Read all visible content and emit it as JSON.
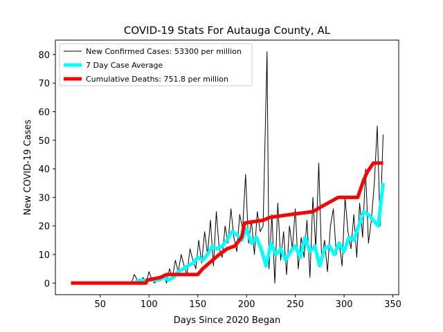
{
  "chart_data": {
    "type": "line",
    "title": "COVID-19 Stats For Autauga County, AL",
    "x_label": "Days Since 2020 Began",
    "y_label": "New COVID-19 Cases",
    "xlim": [
      4,
      356
    ],
    "ylim": [
      -4.05,
      85.05
    ],
    "xticks": [
      50,
      100,
      150,
      200,
      250,
      300,
      350
    ],
    "yticks": [
      0,
      10,
      20,
      30,
      40,
      50,
      60,
      70,
      80
    ],
    "legend": "upper left",
    "series": [
      {
        "name": "New Confirmed Cases: 53300 per million",
        "color": "#000000",
        "width": 1,
        "x": [
          82,
          85,
          88,
          91,
          94,
          97,
          100,
          103,
          106,
          109,
          112,
          115,
          118,
          121,
          124,
          127,
          130,
          133,
          136,
          139,
          142,
          145,
          148,
          151,
          154,
          157,
          160,
          163,
          166,
          169,
          172,
          175,
          178,
          181,
          184,
          187,
          190,
          193,
          196,
          199,
          202,
          205,
          208,
          211,
          214,
          217,
          221,
          223,
          226,
          229,
          232,
          235,
          238,
          241,
          244,
          247,
          250,
          253,
          256,
          259,
          262,
          265,
          268,
          271,
          274,
          277,
          280,
          283,
          286,
          289,
          292,
          295,
          298,
          301,
          304,
          307,
          310,
          313,
          316,
          319,
          322,
          325,
          328,
          331,
          334,
          337,
          340
        ],
        "values": [
          0,
          3,
          1,
          0,
          2,
          0,
          4,
          1,
          0,
          2,
          1,
          3,
          0,
          5,
          2,
          8,
          4,
          10,
          6,
          3,
          12,
          8,
          5,
          15,
          7,
          18,
          10,
          22,
          6,
          25,
          12,
          9,
          20,
          14,
          26,
          16,
          11,
          24,
          19,
          38,
          14,
          22,
          10,
          25,
          18,
          20,
          81,
          5,
          24,
          0,
          28,
          8,
          18,
          3,
          20,
          12,
          26,
          5,
          16,
          9,
          22,
          2,
          30,
          12,
          42,
          8,
          15,
          4,
          20,
          26,
          10,
          14,
          6,
          30,
          18,
          12,
          24,
          9,
          28,
          16,
          40,
          14,
          22,
          35,
          55,
          20,
          52
        ]
      },
      {
        "name": "7 Day Case Average",
        "color": "#00ffff",
        "width": 5,
        "x": [
          85,
          90,
          95,
          100,
          105,
          110,
          115,
          120,
          125,
          130,
          135,
          140,
          145,
          150,
          155,
          160,
          165,
          170,
          175,
          180,
          185,
          190,
          195,
          200,
          205,
          210,
          215,
          220,
          225,
          230,
          235,
          240,
          245,
          250,
          255,
          260,
          265,
          270,
          275,
          280,
          285,
          290,
          295,
          300,
          305,
          310,
          315,
          320,
          325,
          330,
          335,
          340
        ],
        "values": [
          0,
          1,
          1,
          1,
          1,
          1,
          2,
          1,
          2,
          4,
          5,
          6,
          7,
          9,
          8,
          10,
          13,
          12,
          13,
          15,
          18,
          17,
          15,
          19,
          14,
          16,
          12,
          6,
          14,
          10,
          12,
          8,
          11,
          13,
          9,
          16,
          11,
          13,
          6,
          12,
          13,
          10,
          14,
          11,
          16,
          15,
          20,
          25,
          24,
          22,
          20,
          35
        ]
      },
      {
        "name": "Cumulative Deaths: 751.8 per million",
        "color": "#ff0000",
        "width": 5,
        "x": [
          20,
          97,
          98,
          112,
          118,
          150,
          155,
          165,
          172,
          180,
          188,
          195,
          198,
          217,
          224,
          245,
          268,
          278,
          294,
          314,
          320,
          324,
          330,
          340
        ],
        "values": [
          0,
          0,
          1,
          2,
          3,
          3,
          5,
          8,
          10,
          12,
          13,
          16,
          21,
          22,
          23,
          24,
          25,
          27,
          30,
          30,
          36,
          39,
          42,
          42
        ]
      }
    ]
  }
}
